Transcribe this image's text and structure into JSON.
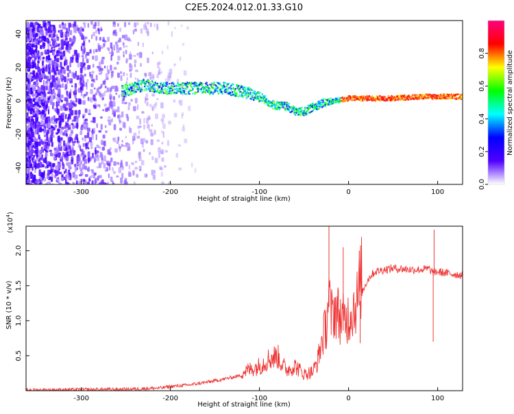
{
  "title": "C2E5.2024.012.01.33.G10",
  "chart_data": [
    {
      "type": "heatmap",
      "xlabel": "Height of straight line (km)",
      "ylabel": "Frequency (Hz)",
      "xlim": [
        -362,
        128
      ],
      "ylim": [
        -50,
        48
      ],
      "xticks": [
        -300,
        -200,
        -100,
        0,
        100
      ],
      "yticks": [
        -40,
        -20,
        0,
        20,
        40
      ],
      "xtick_labels": [
        "-300",
        "-200",
        "-100",
        "0",
        "100"
      ],
      "ytick_labels": [
        "-40",
        "-20",
        "0",
        "20",
        "40"
      ],
      "colorbar": {
        "label": "Normalized spectral amplitude",
        "range": [
          0,
          1
        ],
        "ticks": [
          0.0,
          0.2,
          0.4,
          0.6,
          0.8
        ],
        "tick_labels": [
          "0.0",
          "0.2",
          "0.4",
          "0.6",
          "0.8"
        ],
        "colors": [
          "#ffffff",
          "#5000ff",
          "#0000ff",
          "#00ffff",
          "#00ff00",
          "#ffff00",
          "#ff0000",
          "#ff0080"
        ]
      },
      "ridge": {
        "x": [
          -255,
          -230,
          -215,
          -200,
          -180,
          -160,
          -140,
          -120,
          -100,
          -85,
          -70,
          -60,
          -50,
          -40,
          -30,
          -20,
          -10,
          0,
          20,
          50,
          80,
          100,
          128
        ],
        "y": [
          6,
          10,
          8,
          8,
          8,
          8,
          8,
          6,
          3,
          -2,
          -3,
          -6,
          -6,
          -3,
          -1,
          0,
          1,
          2,
          2,
          2,
          3,
          3,
          3
        ]
      }
    },
    {
      "type": "line",
      "xlabel": "Height of straight line (km)",
      "ylabel": "SNR (10 * v/v)",
      "scale_label": "(x10",
      "scale_exp": "4",
      "scale_close": ")",
      "xlim": [
        -362,
        128
      ],
      "ylim": [
        0,
        23500
      ],
      "xticks": [
        -300,
        -200,
        -100,
        0,
        100
      ],
      "yticks": [
        5000,
        10000,
        15000,
        20000
      ],
      "xtick_labels": [
        "-300",
        "-200",
        "-100",
        "0",
        "100"
      ],
      "ytick_labels": [
        "0.5",
        "1.0",
        "1.5",
        "2.0"
      ],
      "series": [
        {
          "color": "#ee3333",
          "x": [
            -362,
            -300,
            -250,
            -210,
            -200,
            -180,
            -150,
            -120,
            -100,
            -90,
            -80,
            -70,
            -60,
            -50,
            -40,
            -35,
            -30,
            -25,
            -22,
            -20,
            -15,
            -10,
            -5,
            0,
            5,
            10,
            15,
            20,
            25,
            30,
            40,
            50,
            60,
            70,
            80,
            90,
            94,
            96,
            98,
            105,
            115,
            128
          ],
          "y": [
            100,
            150,
            200,
            400,
            600,
            800,
            1400,
            2200,
            3000,
            3800,
            4200,
            2500,
            3000,
            2000,
            2300,
            3500,
            6000,
            8000,
            12000,
            9000,
            10000,
            9000,
            8500,
            9000,
            10000,
            11000,
            14000,
            15500,
            16500,
            17000,
            17300,
            17500,
            17400,
            17300,
            17300,
            17400,
            17000,
            16800,
            17000,
            16900,
            16700,
            16500
          ],
          "spikes": [
            {
              "x": -22,
              "y": 23500
            },
            {
              "x": -6,
              "y": 20500
            },
            {
              "x": 12,
              "y": 20000
            },
            {
              "x": 13,
              "y": 6800
            },
            {
              "x": 95,
              "y": 7000
            },
            {
              "x": 96,
              "y": 23000
            }
          ]
        }
      ]
    }
  ]
}
